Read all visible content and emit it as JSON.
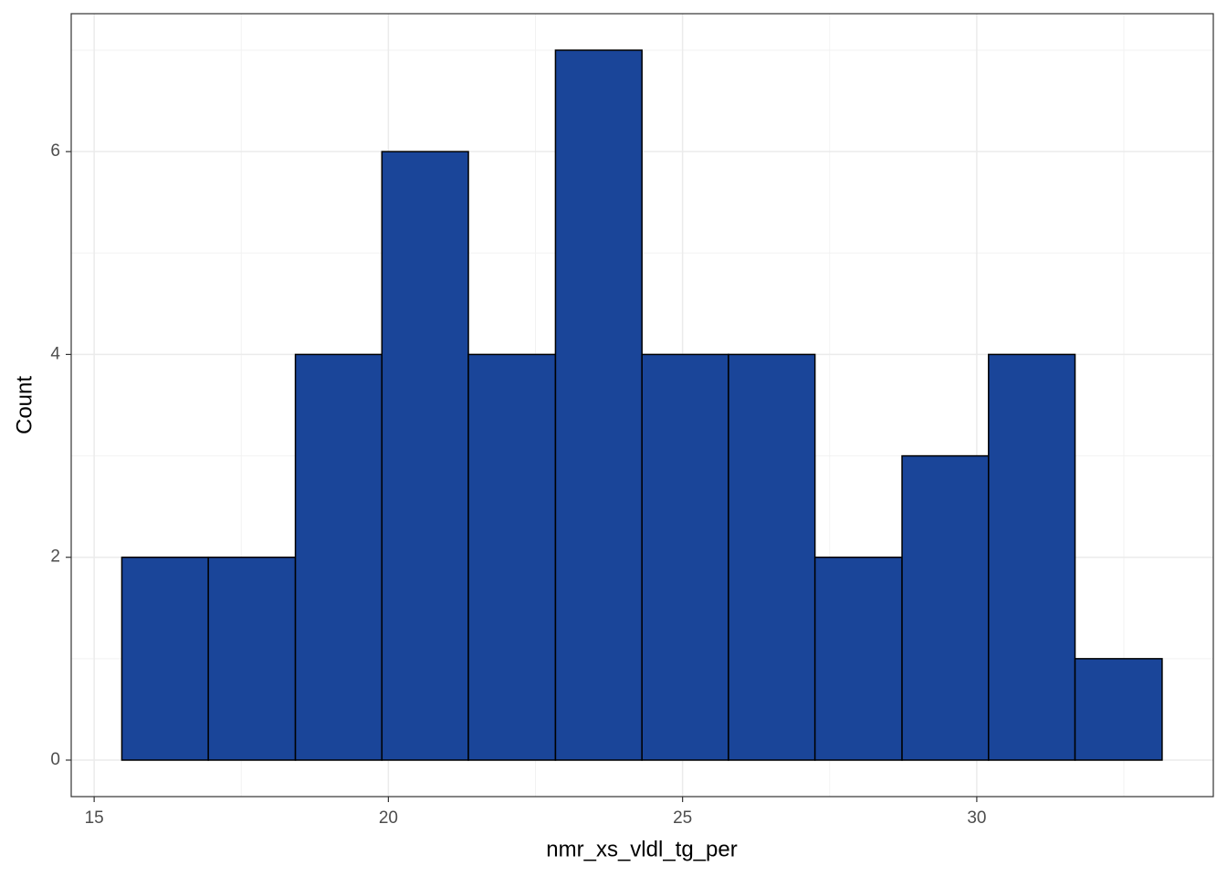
{
  "chart_data": {
    "type": "histogram",
    "xlabel": "nmr_xs_vldl_tg_per",
    "ylabel": "Count",
    "bins": [
      15.47,
      16.94,
      18.42,
      19.89,
      21.36,
      22.84,
      24.31,
      25.78,
      27.25,
      28.73,
      30.2,
      31.67,
      33.15
    ],
    "values": [
      2,
      2,
      4,
      6,
      4,
      7,
      4,
      4,
      2,
      3,
      4,
      1
    ],
    "color": "#1a4599",
    "edgecolor": "#000000",
    "xlim": [
      14.61,
      34.02
    ],
    "ylim": [
      -0.36,
      7.36
    ],
    "xticks": [
      15,
      20,
      25,
      30
    ],
    "yticks": [
      0,
      2,
      4,
      6
    ],
    "minor_xticks": [
      17.5,
      22.5,
      27.5,
      32.5
    ],
    "minor_yticks": [
      1,
      3,
      5,
      7
    ],
    "grid": true
  }
}
